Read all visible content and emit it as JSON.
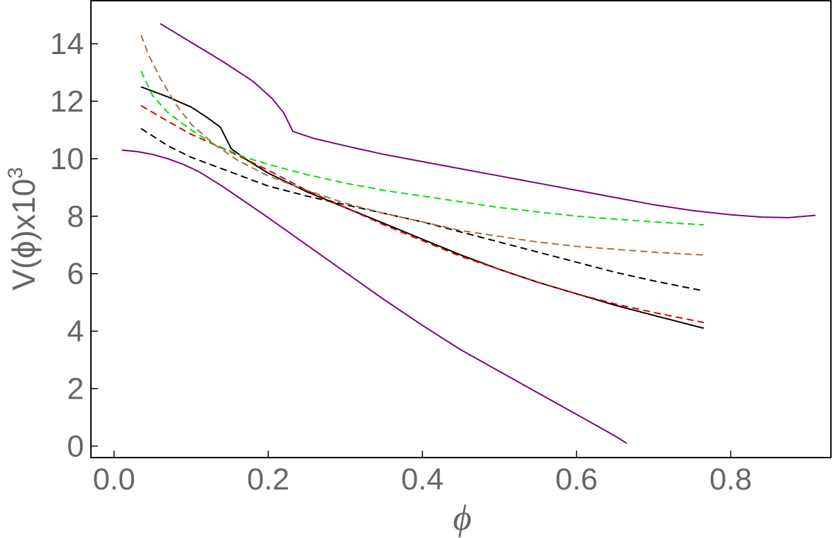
{
  "chart_data": {
    "type": "line",
    "title": "",
    "xlabel": "ϕ",
    "ylabel": "V(ϕ)x10",
    "ylabel_superscript": "3",
    "xlim": [
      -0.03,
      0.93
    ],
    "ylim": [
      -0.4,
      15.5
    ],
    "x_ticks": [
      0.0,
      0.2,
      0.4,
      0.6,
      0.8
    ],
    "x_tick_labels": [
      "0.0",
      "0.2",
      "0.4",
      "0.6",
      "0.8"
    ],
    "y_ticks": [
      0,
      2,
      4,
      6,
      8,
      10,
      12,
      14
    ],
    "y_tick_labels": [
      "0",
      "2",
      "4",
      "6",
      "8",
      "10",
      "12",
      "14"
    ],
    "grid": false,
    "legend": "none",
    "series": [
      {
        "color": "#800080",
        "dash": "solid",
        "points": [
          [
            0.06,
            14.7
          ],
          [
            0.1,
            14.05
          ],
          [
            0.14,
            13.4
          ],
          [
            0.18,
            12.7
          ],
          [
            0.205,
            12.1
          ],
          [
            0.22,
            11.6
          ],
          [
            0.232,
            10.95
          ],
          [
            0.26,
            10.7
          ],
          [
            0.3,
            10.45
          ],
          [
            0.35,
            10.15
          ],
          [
            0.4,
            9.9
          ],
          [
            0.45,
            9.65
          ],
          [
            0.5,
            9.4
          ],
          [
            0.55,
            9.15
          ],
          [
            0.6,
            8.9
          ],
          [
            0.65,
            8.65
          ],
          [
            0.7,
            8.4
          ],
          [
            0.75,
            8.2
          ],
          [
            0.8,
            8.05
          ],
          [
            0.84,
            7.97
          ],
          [
            0.875,
            7.95
          ],
          [
            0.91,
            8.03
          ]
        ]
      },
      {
        "color": "#800080",
        "dash": "solid",
        "points": [
          [
            0.01,
            10.3
          ],
          [
            0.03,
            10.25
          ],
          [
            0.05,
            10.15
          ],
          [
            0.07,
            10.0
          ],
          [
            0.09,
            9.8
          ],
          [
            0.11,
            9.55
          ],
          [
            0.14,
            9.05
          ],
          [
            0.2,
            7.95
          ],
          [
            0.25,
            7.0
          ],
          [
            0.3,
            6.05
          ],
          [
            0.35,
            5.1
          ],
          [
            0.4,
            4.2
          ],
          [
            0.45,
            3.35
          ],
          [
            0.5,
            2.6
          ],
          [
            0.55,
            1.85
          ],
          [
            0.6,
            1.1
          ],
          [
            0.65,
            0.35
          ],
          [
            0.665,
            0.1
          ]
        ]
      },
      {
        "color": "#000000",
        "dash": "solid",
        "points": [
          [
            0.035,
            12.5
          ],
          [
            0.07,
            12.15
          ],
          [
            0.1,
            11.8
          ],
          [
            0.12,
            11.45
          ],
          [
            0.138,
            11.1
          ],
          [
            0.152,
            10.35
          ],
          [
            0.17,
            10.0
          ],
          [
            0.2,
            9.5
          ],
          [
            0.25,
            8.85
          ],
          [
            0.3,
            8.3
          ],
          [
            0.35,
            7.75
          ],
          [
            0.4,
            7.2
          ],
          [
            0.45,
            6.65
          ],
          [
            0.5,
            6.15
          ],
          [
            0.55,
            5.7
          ],
          [
            0.6,
            5.3
          ],
          [
            0.65,
            4.9
          ],
          [
            0.7,
            4.55
          ],
          [
            0.765,
            4.1
          ]
        ]
      },
      {
        "color": "#dd0000",
        "dash": "dashed",
        "points": [
          [
            0.035,
            11.85
          ],
          [
            0.07,
            11.3
          ],
          [
            0.1,
            10.85
          ],
          [
            0.15,
            10.25
          ],
          [
            0.2,
            9.6
          ],
          [
            0.25,
            8.9
          ],
          [
            0.3,
            8.3
          ],
          [
            0.35,
            7.7
          ],
          [
            0.4,
            7.15
          ],
          [
            0.45,
            6.6
          ],
          [
            0.5,
            6.15
          ],
          [
            0.55,
            5.7
          ],
          [
            0.6,
            5.3
          ],
          [
            0.65,
            4.95
          ],
          [
            0.7,
            4.65
          ],
          [
            0.765,
            4.3
          ]
        ]
      },
      {
        "color": "#000000",
        "dash": "dashed",
        "points": [
          [
            0.035,
            11.05
          ],
          [
            0.07,
            10.45
          ],
          [
            0.1,
            10.05
          ],
          [
            0.15,
            9.55
          ],
          [
            0.2,
            9.05
          ],
          [
            0.25,
            8.7
          ],
          [
            0.3,
            8.4
          ],
          [
            0.35,
            8.1
          ],
          [
            0.4,
            7.8
          ],
          [
            0.45,
            7.45
          ],
          [
            0.5,
            7.1
          ],
          [
            0.55,
            6.75
          ],
          [
            0.6,
            6.4
          ],
          [
            0.65,
            6.05
          ],
          [
            0.7,
            5.75
          ],
          [
            0.765,
            5.4
          ]
        ]
      },
      {
        "color": "#00e000",
        "dash": "dashed",
        "points": [
          [
            0.035,
            13.05
          ],
          [
            0.05,
            12.2
          ],
          [
            0.07,
            11.6
          ],
          [
            0.1,
            11.0
          ],
          [
            0.13,
            10.5
          ],
          [
            0.17,
            10.05
          ],
          [
            0.2,
            9.8
          ],
          [
            0.25,
            9.45
          ],
          [
            0.3,
            9.15
          ],
          [
            0.35,
            8.9
          ],
          [
            0.4,
            8.7
          ],
          [
            0.45,
            8.5
          ],
          [
            0.5,
            8.3
          ],
          [
            0.55,
            8.15
          ],
          [
            0.6,
            8.0
          ],
          [
            0.65,
            7.9
          ],
          [
            0.7,
            7.8
          ],
          [
            0.765,
            7.7
          ]
        ]
      },
      {
        "color": "#a86d3c",
        "dash": "dashed",
        "points": [
          [
            0.035,
            14.3
          ],
          [
            0.045,
            13.6
          ],
          [
            0.06,
            12.8
          ],
          [
            0.08,
            11.9
          ],
          [
            0.1,
            11.2
          ],
          [
            0.13,
            10.5
          ],
          [
            0.16,
            9.95
          ],
          [
            0.2,
            9.4
          ],
          [
            0.25,
            8.9
          ],
          [
            0.3,
            8.45
          ],
          [
            0.35,
            8.1
          ],
          [
            0.4,
            7.8
          ],
          [
            0.45,
            7.5
          ],
          [
            0.5,
            7.3
          ],
          [
            0.55,
            7.1
          ],
          [
            0.6,
            6.95
          ],
          [
            0.65,
            6.85
          ],
          [
            0.7,
            6.75
          ],
          [
            0.765,
            6.65
          ]
        ]
      }
    ]
  }
}
